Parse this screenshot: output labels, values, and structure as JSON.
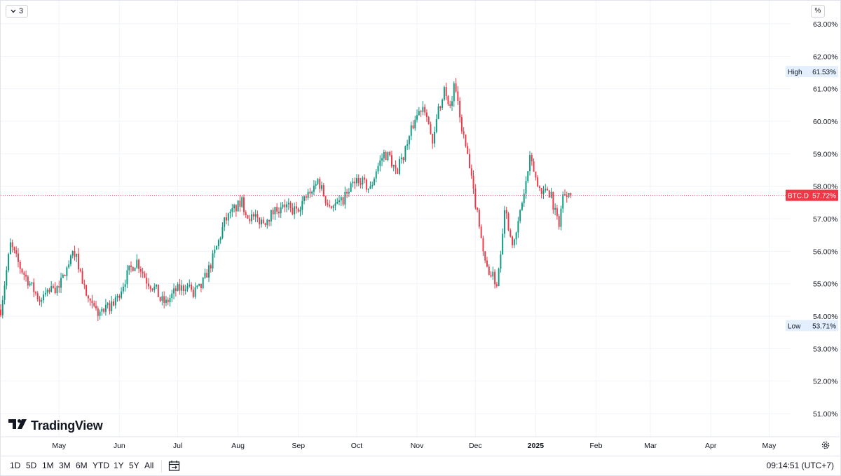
{
  "toolbar": {
    "interval_label": "3",
    "percent_label": "%"
  },
  "branding": {
    "logo_text": "TradingView"
  },
  "bottom_bar": {
    "ranges": [
      "1D",
      "5D",
      "1M",
      "3M",
      "6M",
      "YTD",
      "1Y",
      "5Y",
      "All"
    ],
    "clock": "09:14:51 (UTC+7)"
  },
  "colors": {
    "up": "#089981",
    "down": "#f23645",
    "grid": "#f0f3fa",
    "last_price": "#f23645",
    "marker_bg": "#e3effd"
  },
  "chart_data": {
    "type": "candlestick",
    "symbol_label": "BTC.D",
    "last_value_label": "57.72%",
    "last_value": 57.72,
    "high_label": "High",
    "high_value_label": "61.53%",
    "high_value": 61.53,
    "low_label": "Low",
    "low_value_label": "53.71%",
    "low_value": 53.71,
    "y_ticks": [
      "51.00%",
      "52.00%",
      "53.00%",
      "54.00%",
      "55.00%",
      "56.00%",
      "57.00%",
      "58.00%",
      "59.00%",
      "60.00%",
      "61.00%",
      "62.00%",
      "63.00%"
    ],
    "y_tick_values": [
      51,
      52,
      53,
      54,
      55,
      56,
      57,
      58,
      59,
      60,
      61,
      62,
      63
    ],
    "ylim": [
      50.5,
      63.3
    ],
    "x_ticks": [
      {
        "label": "May",
        "day": 30
      },
      {
        "label": "Jun",
        "day": 61
      },
      {
        "label": "Jul",
        "day": 91
      },
      {
        "label": "Aug",
        "day": 122
      },
      {
        "label": "Sep",
        "day": 153
      },
      {
        "label": "Oct",
        "day": 183
      },
      {
        "label": "Nov",
        "day": 214
      },
      {
        "label": "Dec",
        "day": 244
      },
      {
        "label": "2025",
        "day": 275,
        "bold": true
      },
      {
        "label": "Feb",
        "day": 306
      },
      {
        "label": "Mar",
        "day": 334
      },
      {
        "label": "Apr",
        "day": 365
      },
      {
        "label": "May",
        "day": 395
      }
    ],
    "x_domain": [
      0,
      406
    ],
    "keypoints": [
      [
        0,
        54.2
      ],
      [
        5,
        56.2
      ],
      [
        10,
        55.5
      ],
      [
        15,
        55.0
      ],
      [
        20,
        54.5
      ],
      [
        25,
        54.8
      ],
      [
        30,
        54.9
      ],
      [
        35,
        55.6
      ],
      [
        38,
        56.0
      ],
      [
        42,
        55.1
      ],
      [
        45,
        54.4
      ],
      [
        50,
        54.1
      ],
      [
        55,
        54.2
      ],
      [
        60,
        54.6
      ],
      [
        63,
        55.0
      ],
      [
        66,
        55.4
      ],
      [
        70,
        55.7
      ],
      [
        75,
        55.1
      ],
      [
        80,
        54.8
      ],
      [
        82,
        54.5
      ],
      [
        85,
        54.4
      ],
      [
        90,
        54.8
      ],
      [
        95,
        54.9
      ],
      [
        99,
        54.7
      ],
      [
        103,
        54.9
      ],
      [
        108,
        55.6
      ],
      [
        112,
        56.3
      ],
      [
        115,
        56.9
      ],
      [
        120,
        57.3
      ],
      [
        124,
        57.5
      ],
      [
        127,
        57.1
      ],
      [
        130,
        57.0
      ],
      [
        135,
        56.9
      ],
      [
        140,
        57.2
      ],
      [
        145,
        57.5
      ],
      [
        150,
        57.2
      ],
      [
        155,
        57.5
      ],
      [
        160,
        57.9
      ],
      [
        163,
        58.2
      ],
      [
        167,
        57.6
      ],
      [
        170,
        57.4
      ],
      [
        175,
        57.5
      ],
      [
        178,
        57.8
      ],
      [
        181,
        58.0
      ],
      [
        184,
        58.2
      ],
      [
        190,
        57.9
      ],
      [
        193,
        58.5
      ],
      [
        197,
        59.0
      ],
      [
        200,
        58.9
      ],
      [
        203,
        58.4
      ],
      [
        206,
        58.8
      ],
      [
        210,
        59.5
      ],
      [
        213,
        60.1
      ],
      [
        217,
        60.5
      ],
      [
        219,
        60.3
      ],
      [
        222,
        59.2
      ],
      [
        225,
        60.4
      ],
      [
        228,
        61.0
      ],
      [
        230,
        60.4
      ],
      [
        232,
        60.6
      ],
      [
        233,
        61.2
      ],
      [
        236,
        60.1
      ],
      [
        240,
        58.9
      ],
      [
        243,
        57.8
      ],
      [
        246,
        56.9
      ],
      [
        249,
        55.6
      ],
      [
        252,
        55.3
      ],
      [
        255,
        55.0
      ],
      [
        257,
        56.0
      ],
      [
        259,
        57.4
      ],
      [
        262,
        56.5
      ],
      [
        264,
        56.2
      ],
      [
        267,
        57.2
      ],
      [
        270,
        58.1
      ],
      [
        272,
        58.8
      ],
      [
        274,
        58.5
      ],
      [
        276,
        58.0
      ],
      [
        278,
        57.9
      ],
      [
        280,
        57.8
      ],
      [
        283,
        57.8
      ],
      [
        285,
        57.1
      ],
      [
        287,
        56.9
      ],
      [
        289,
        57.7
      ],
      [
        292,
        57.9
      ],
      [
        293,
        57.72
      ]
    ]
  }
}
